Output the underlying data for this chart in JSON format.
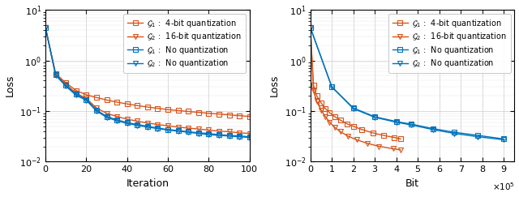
{
  "left": {
    "xlabel": "Iteration",
    "ylabel": "Loss",
    "xlim": [
      0,
      100
    ],
    "ylim": [
      0.01,
      10
    ],
    "xticks": [
      0,
      20,
      40,
      60,
      80,
      100
    ],
    "series": [
      {
        "label": "$\\mathcal{G}_1$ :  4-bit quantization",
        "color": "#D95319",
        "marker": "s",
        "markersize": 4,
        "x": [
          0,
          5,
          10,
          15,
          20,
          25,
          30,
          35,
          40,
          45,
          50,
          55,
          60,
          65,
          70,
          75,
          80,
          85,
          90,
          95,
          100
        ],
        "y": [
          4.5,
          0.55,
          0.36,
          0.255,
          0.21,
          0.185,
          0.165,
          0.15,
          0.138,
          0.128,
          0.12,
          0.113,
          0.107,
          0.102,
          0.098,
          0.094,
          0.09,
          0.087,
          0.084,
          0.081,
          0.078
        ]
      },
      {
        "label": "$\\mathcal{G}_2$ :  16-bit quantization",
        "color": "#D95319",
        "marker": "v",
        "markersize": 4,
        "x": [
          0,
          5,
          10,
          15,
          20,
          25,
          30,
          35,
          40,
          45,
          50,
          55,
          60,
          65,
          70,
          75,
          80,
          85,
          90,
          95,
          100
        ],
        "y": [
          4.5,
          0.54,
          0.34,
          0.225,
          0.178,
          0.115,
          0.09,
          0.078,
          0.069,
          0.063,
          0.058,
          0.054,
          0.051,
          0.048,
          0.046,
          0.044,
          0.042,
          0.04,
          0.039,
          0.037,
          0.036
        ]
      },
      {
        "label": "$\\mathcal{G}_1$ :  No quantization",
        "color": "#0072BD",
        "marker": "s",
        "markersize": 4,
        "x": [
          0,
          5,
          10,
          15,
          20,
          25,
          30,
          35,
          40,
          45,
          50,
          55,
          60,
          65,
          70,
          75,
          80,
          85,
          90,
          95,
          100
        ],
        "y": [
          4.5,
          0.52,
          0.32,
          0.215,
          0.17,
          0.105,
          0.078,
          0.067,
          0.059,
          0.054,
          0.05,
          0.046,
          0.043,
          0.041,
          0.039,
          0.037,
          0.036,
          0.034,
          0.033,
          0.032,
          0.031
        ]
      },
      {
        "label": "$\\mathcal{G}_2$ :  No quantization",
        "color": "#0072BD",
        "marker": "v",
        "markersize": 4,
        "x": [
          0,
          5,
          10,
          15,
          20,
          25,
          30,
          35,
          40,
          45,
          50,
          55,
          60,
          65,
          70,
          75,
          80,
          85,
          90,
          95,
          100
        ],
        "y": [
          4.5,
          0.51,
          0.31,
          0.205,
          0.163,
          0.1,
          0.075,
          0.064,
          0.057,
          0.052,
          0.048,
          0.045,
          0.042,
          0.04,
          0.038,
          0.036,
          0.034,
          0.033,
          0.032,
          0.031,
          0.03
        ]
      }
    ]
  },
  "right": {
    "xlabel": "Bit",
    "ylabel": "Loss",
    "xlim": [
      0,
      950000
    ],
    "ylim": [
      0.01,
      10
    ],
    "xtick_scale": 100000,
    "xticks": [
      0,
      100000,
      200000,
      300000,
      400000,
      500000,
      600000,
      700000,
      800000,
      900000
    ],
    "xtick_labels": [
      "0",
      "1",
      "2",
      "3",
      "4",
      "5",
      "6",
      "7",
      "8",
      "9"
    ],
    "series": [
      {
        "label": "$\\mathcal{G}_1$ :  4-bit quantization",
        "color": "#D95319",
        "marker": "s",
        "markersize": 4,
        "x": [
          0,
          15000,
          30000,
          50000,
          70000,
          90000,
          115000,
          140000,
          170000,
          200000,
          240000,
          290000,
          340000,
          390000,
          420000
        ],
        "y": [
          4.5,
          0.32,
          0.2,
          0.145,
          0.112,
          0.092,
          0.077,
          0.066,
          0.056,
          0.05,
          0.043,
          0.037,
          0.033,
          0.03,
          0.028
        ]
      },
      {
        "label": "$\\mathcal{G}_2$ :  16-bit quantization",
        "color": "#D95319",
        "marker": "v",
        "markersize": 4,
        "x": [
          0,
          15000,
          30000,
          50000,
          70000,
          90000,
          115000,
          140000,
          175000,
          215000,
          265000,
          320000,
          385000,
          420000
        ],
        "y": [
          4.5,
          0.25,
          0.155,
          0.105,
          0.078,
          0.06,
          0.047,
          0.039,
          0.032,
          0.027,
          0.023,
          0.02,
          0.018,
          0.017
        ]
      },
      {
        "label": "$\\mathcal{G}_1$ :  No quantization",
        "color": "#0072BD",
        "marker": "s",
        "markersize": 4,
        "x": [
          0,
          100000,
          200000,
          300000,
          400000,
          470000,
          570000,
          670000,
          780000,
          900000
        ],
        "y": [
          4.5,
          0.3,
          0.115,
          0.077,
          0.062,
          0.055,
          0.045,
          0.038,
          0.033,
          0.028
        ]
      },
      {
        "label": "$\\mathcal{G}_2$ :  No quantization",
        "color": "#0072BD",
        "marker": "v",
        "markersize": 4,
        "x": [
          0,
          100000,
          200000,
          300000,
          400000,
          470000,
          570000,
          670000,
          780000,
          900000
        ],
        "y": [
          4.5,
          0.3,
          0.112,
          0.075,
          0.06,
          0.053,
          0.043,
          0.036,
          0.031,
          0.027
        ]
      }
    ]
  },
  "legend_fontsize": 7.0,
  "axis_label_fontsize": 9,
  "tick_fontsize": 8
}
